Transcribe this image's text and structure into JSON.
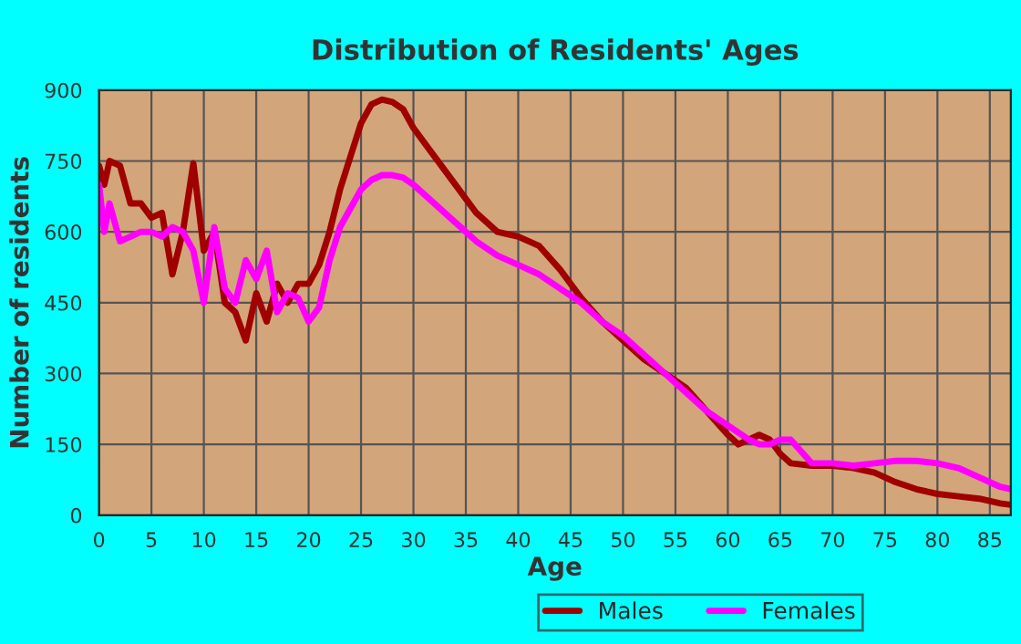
{
  "chart_data": {
    "type": "line",
    "title": "Distribution of Residents' Ages",
    "xlabel": "Age",
    "ylabel": "Number of residents",
    "x": [
      0,
      0.5,
      1,
      2,
      3,
      4,
      5,
      6,
      7,
      8,
      9,
      10,
      11,
      12,
      13,
      14,
      15,
      16,
      17,
      18,
      19,
      20,
      21,
      22,
      23,
      24,
      25,
      26,
      27,
      28,
      29,
      30,
      32,
      34,
      36,
      38,
      40,
      42,
      44,
      46,
      48,
      50,
      52,
      54,
      56,
      58,
      60,
      61,
      62,
      63,
      64,
      65,
      66,
      68,
      70,
      72,
      74,
      76,
      78,
      80,
      82,
      84,
      86,
      87
    ],
    "series": [
      {
        "name": "Males",
        "color": "#a00000",
        "values": [
          740,
          700,
          750,
          740,
          660,
          660,
          630,
          640,
          510,
          600,
          745,
          560,
          600,
          450,
          430,
          370,
          470,
          410,
          490,
          450,
          490,
          490,
          530,
          600,
          690,
          760,
          830,
          870,
          880,
          875,
          860,
          820,
          760,
          700,
          640,
          600,
          590,
          570,
          520,
          460,
          410,
          370,
          330,
          300,
          270,
          220,
          170,
          150,
          160,
          170,
          160,
          130,
          110,
          105,
          105,
          100,
          90,
          70,
          55,
          45,
          40,
          35,
          25,
          22
        ]
      },
      {
        "name": "Females",
        "color": "#ff00ff",
        "values": [
          700,
          600,
          660,
          580,
          590,
          600,
          600,
          590,
          610,
          600,
          560,
          450,
          610,
          480,
          450,
          540,
          500,
          560,
          430,
          470,
          460,
          410,
          440,
          540,
          610,
          650,
          690,
          710,
          720,
          720,
          715,
          700,
          660,
          620,
          580,
          550,
          530,
          510,
          480,
          450,
          410,
          380,
          340,
          300,
          260,
          220,
          190,
          175,
          160,
          150,
          150,
          160,
          160,
          110,
          110,
          105,
          110,
          115,
          115,
          110,
          100,
          80,
          60,
          55
        ]
      }
    ],
    "xlim": [
      0,
      87
    ],
    "xticks": [
      0,
      5,
      10,
      15,
      20,
      25,
      30,
      35,
      40,
      45,
      50,
      55,
      60,
      65,
      70,
      75,
      80,
      85
    ],
    "ylim": [
      0,
      900
    ],
    "yticks": [
      0,
      150,
      300,
      450,
      600,
      750,
      900
    ],
    "grid": true,
    "legend": "bottom",
    "line_style": "solid",
    "marker": "none"
  }
}
